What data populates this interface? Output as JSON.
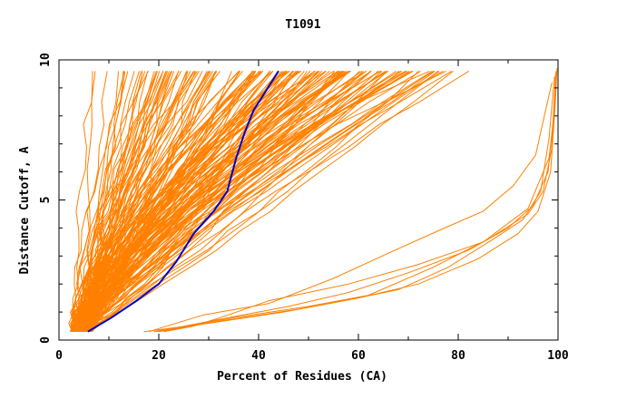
{
  "chart_data": {
    "type": "line",
    "title": "T1091",
    "xlabel": "Percent of Residues (CA)",
    "ylabel": "Distance Cutoff, A",
    "xlim": [
      0,
      100
    ],
    "ylim": [
      0,
      10
    ],
    "x_ticks": [
      "0",
      "20",
      "40",
      "60",
      "80",
      "100"
    ],
    "y_ticks": [
      "0",
      "5",
      "10"
    ],
    "grid": false,
    "legend": "none",
    "colors": {
      "bundle": "#ff8000",
      "highlight": "#0000cc",
      "axis": "#000000"
    },
    "highlight_series": {
      "x": [
        5.8,
        10.5,
        15.5,
        20.0,
        23.5,
        27.0,
        31.0,
        33.7,
        35.5,
        37.2,
        39.0,
        41.5,
        44.0
      ],
      "y": [
        0.3,
        0.8,
        1.4,
        2.0,
        2.8,
        3.8,
        4.6,
        5.3,
        6.5,
        7.4,
        8.2,
        8.9,
        9.6
      ]
    },
    "isolated_series": [
      {
        "x": [
          19,
          35,
          50,
          62,
          75,
          86,
          94,
          97,
          98.7,
          99.2,
          99.6
        ],
        "y": [
          0.3,
          0.8,
          1.2,
          1.6,
          2.6,
          3.6,
          4.5,
          5.3,
          6.8,
          8.2,
          9.6
        ]
      },
      {
        "x": [
          17,
          30,
          45,
          57,
          68,
          78,
          87,
          93,
          96.5,
          98.2,
          99.3
        ],
        "y": [
          0.3,
          0.6,
          1.0,
          1.4,
          1.8,
          2.6,
          3.6,
          4.3,
          5.3,
          7.2,
          9.4
        ]
      },
      {
        "x": [
          20,
          33,
          48,
          60,
          72,
          84,
          92,
          96,
          98.5,
          99.3,
          99.7
        ],
        "y": [
          0.3,
          0.7,
          1.1,
          1.5,
          2.0,
          2.9,
          3.8,
          4.6,
          6.0,
          8.0,
          9.6
        ]
      },
      {
        "x": [
          18,
          29,
          42,
          55,
          66,
          76,
          85,
          91,
          95.5,
          97.5,
          98.8
        ],
        "y": [
          0.3,
          0.9,
          1.3,
          2.2,
          3.1,
          3.9,
          4.6,
          5.5,
          6.6,
          8.2,
          9.2
        ]
      },
      {
        "x": [
          19.5,
          31,
          46,
          58,
          70,
          82,
          90,
          95,
          98,
          99,
          99.5
        ],
        "y": [
          0.3,
          0.7,
          1.2,
          1.7,
          2.4,
          3.2,
          4.0,
          4.8,
          6.0,
          7.8,
          9.5
        ]
      },
      {
        "x": [
          21,
          27,
          34,
          42,
          58,
          72,
          85,
          94,
          98.2,
          99.4,
          99.8
        ],
        "y": [
          0.3,
          0.5,
          0.9,
          1.4,
          2.0,
          2.7,
          3.5,
          4.7,
          6.5,
          8.3,
          9.7
        ]
      }
    ]
  }
}
